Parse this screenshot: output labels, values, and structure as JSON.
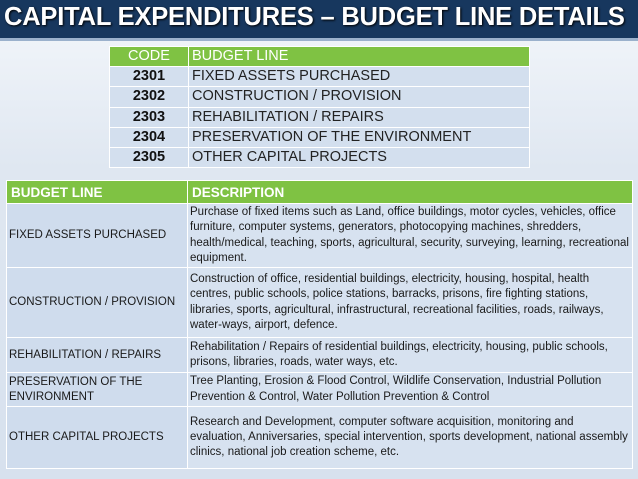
{
  "slide": {
    "title": "CAPITAL EXPENDITURES – BUDGET LINE DETAILS"
  },
  "code_table": {
    "headers": {
      "code": "CODE",
      "budget_line": "BUDGET LINE"
    },
    "rows": [
      {
        "code": "2301",
        "budget_line": "FIXED ASSETS PURCHASED"
      },
      {
        "code": "2302",
        "budget_line": "CONSTRUCTION / PROVISION"
      },
      {
        "code": "2303",
        "budget_line": "REHABILITATION / REPAIRS"
      },
      {
        "code": "2304",
        "budget_line": "PRESERVATION OF THE ENVIRONMENT"
      },
      {
        "code": "2305",
        "budget_line": "OTHER CAPITAL PROJECTS"
      }
    ]
  },
  "details_table": {
    "headers": {
      "budget_line": "BUDGET LINE",
      "description": "DESCRIPTION"
    },
    "rows": [
      {
        "budget_line": "FIXED ASSETS PURCHASED",
        "description": "Purchase of fixed items such as Land, office buildings, motor cycles, vehicles, office furniture, computer systems, generators, photocopying machines, shredders, health/medical, teaching, sports, agricultural, security, surveying, learning, recreational equipment."
      },
      {
        "budget_line": "CONSTRUCTION / PROVISION",
        "description": "Construction of office, residential buildings, electricity, housing, hospital, health centres, public schools, police stations, barracks, prisons, fire fighting stations, libraries, sports, agricultural, infrastructural, recreational facilities, roads, railways, water-ways, airport, defence."
      },
      {
        "budget_line": "REHABILITATION / REPAIRS",
        "description": "Rehabilitation / Repairs of residential buildings, electricity, housing, public schools, prisons, libraries, roads, water ways, etc."
      },
      {
        "budget_line": "PRESERVATION OF THE ENVIRONMENT",
        "description": "Tree Planting, Erosion & Flood Control, Wildlife Conservation, Industrial Pollution Prevention & Control, Water Pollution Prevention & Control"
      },
      {
        "budget_line": "OTHER CAPITAL PROJECTS",
        "description": "Research and Development, computer software acquisition, monitoring and evaluation, Anniversaries, special intervention, sports development, national assembly clinics, national job creation scheme, etc."
      }
    ]
  }
}
